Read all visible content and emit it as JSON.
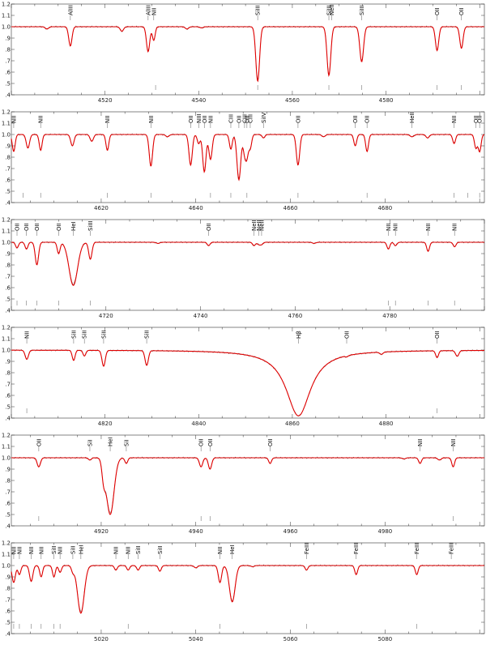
{
  "colors": {
    "model": "#e00000",
    "observed": "#555555",
    "frame": "#333333"
  },
  "chart_data": [
    {
      "type": "line",
      "xlim": [
        4500,
        4601
      ],
      "ylim": [
        0.4,
        1.2
      ],
      "xticks": [
        4520,
        4540,
        4560,
        4580
      ],
      "yticks": [
        0.4,
        0.5,
        0.6,
        0.7,
        0.8,
        0.9,
        1.0,
        1.1,
        1.2
      ],
      "ytick_labels": [
        ".4",
        ".5",
        ".6",
        ".7",
        ".8",
        ".9",
        "1.0",
        "1.1",
        "1.2"
      ],
      "series": [
        {
          "role": "observed",
          "x": [
            4500,
            4601
          ],
          "y": [
            1.0,
            1.0
          ]
        },
        {
          "role": "model",
          "x": [
            4500,
            4601
          ],
          "y": [
            1.0,
            1.0
          ]
        }
      ],
      "lines": [
        {
          "label": "AlIII",
          "x": 4512.6,
          "depth": 0.17,
          "width": 0.35
        },
        {
          "label": "AlIII",
          "x": 4529.2,
          "depth": 0.22,
          "width": 0.35
        },
        {
          "label": "NII",
          "x": 4530.4,
          "depth": 0.12,
          "width": 0.3
        },
        {
          "label": "SiIII",
          "x": 4552.6,
          "depth": 0.48,
          "width": 0.4
        },
        {
          "label": "SiIII",
          "x": 4567.8,
          "depth": 0.43,
          "width": 0.4
        },
        {
          "label": "NeII",
          "x": 4568.4,
          "depth": 0.0,
          "width": 0.3
        },
        {
          "label": "SiIII",
          "x": 4574.8,
          "depth": 0.31,
          "width": 0.4
        },
        {
          "label": "OII",
          "x": 4590.9,
          "depth": 0.21,
          "width": 0.35
        },
        {
          "label": "OII",
          "x": 4596.1,
          "depth": 0.19,
          "width": 0.35
        }
      ],
      "extra_dips": [
        [
          4507.6,
          0.02
        ],
        [
          4523.6,
          0.04
        ],
        [
          4537.5,
          0.02
        ],
        [
          4540.6,
          0.01
        ]
      ],
      "markers": [
        4530.8,
        4552.6,
        4567.8,
        4574.8,
        4590.9,
        4596.1
      ]
    },
    {
      "type": "line",
      "xlim": [
        4601,
        4701
      ],
      "ylim": [
        0.4,
        1.2
      ],
      "xticks": [
        4620,
        4640,
        4660,
        4680
      ],
      "yticks": [
        0.4,
        0.5,
        0.6,
        0.7,
        0.8,
        0.9,
        1.0,
        1.1,
        1.2
      ],
      "ytick_labels": [
        ".4",
        ".5",
        ".6",
        ".7",
        ".8",
        ".9",
        "1.0",
        "1.1",
        "1.2"
      ],
      "series": [
        {
          "role": "observed",
          "x": [
            4601,
            4701
          ],
          "y": [
            1.0,
            1.0
          ]
        },
        {
          "role": "model",
          "x": [
            4601,
            4701
          ],
          "y": [
            1.0,
            1.0
          ]
        }
      ],
      "lines": [
        {
          "label": "NII",
          "x": 4601.5,
          "depth": 0.15,
          "width": 0.3
        },
        {
          "label": "NII",
          "x": 4607.2,
          "depth": 0.14,
          "width": 0.3
        },
        {
          "label": "NII",
          "x": 4621.3,
          "depth": 0.14,
          "width": 0.3
        },
        {
          "label": "NII",
          "x": 4630.5,
          "depth": 0.28,
          "width": 0.35
        },
        {
          "label": "OII",
          "x": 4638.9,
          "depth": 0.27,
          "width": 0.35
        },
        {
          "label": "NIII",
          "x": 4640.6,
          "depth": 0.08,
          "width": 0.3
        },
        {
          "label": "OII",
          "x": 4641.8,
          "depth": 0.33,
          "width": 0.35
        },
        {
          "label": "NII",
          "x": 4643.1,
          "depth": 0.22,
          "width": 0.35
        },
        {
          "label": "CIII",
          "x": 4647.4,
          "depth": 0.13,
          "width": 0.3
        },
        {
          "label": "OII",
          "x": 4649.1,
          "depth": 0.4,
          "width": 0.4
        },
        {
          "label": "CIII",
          "x": 4650.3,
          "depth": 0.15,
          "width": 0.3
        },
        {
          "label": "OII",
          "x": 4650.8,
          "depth": 0.18,
          "width": 0.3
        },
        {
          "label": "CIII",
          "x": 4651.5,
          "depth": 0.12,
          "width": 0.3
        },
        {
          "label": "SiIV",
          "x": 4654.3,
          "depth": 0.03,
          "width": 0.3
        },
        {
          "label": "OII",
          "x": 4661.6,
          "depth": 0.27,
          "width": 0.35
        },
        {
          "label": "OII",
          "x": 4673.7,
          "depth": 0.1,
          "width": 0.3
        },
        {
          "label": "OII",
          "x": 4676.2,
          "depth": 0.15,
          "width": 0.3
        },
        {
          "label": "HeII",
          "x": 4685.7,
          "depth": 0.02,
          "width": 0.4
        },
        {
          "label": "NII",
          "x": 4694.6,
          "depth": 0.08,
          "width": 0.3
        },
        {
          "label": "OII",
          "x": 4699.2,
          "depth": 0.12,
          "width": 0.3
        },
        {
          "label": "OII",
          "x": 4700.0,
          "depth": 0.15,
          "width": 0.3
        }
      ],
      "extra_dips": [
        [
          4604.5,
          0.12
        ],
        [
          4613.9,
          0.1
        ],
        [
          4618.0,
          0.06
        ],
        [
          4634.0,
          0.02
        ],
        [
          4667.0,
          0.02
        ],
        [
          4689.0,
          0.03
        ]
      ],
      "markers": [
        4603.5,
        4607.2,
        4621.3,
        4630.5,
        4643.1,
        4647.4,
        4650.8,
        4661.6,
        4676.2,
        4694.6,
        4697.5,
        4700.0
      ]
    },
    {
      "type": "line",
      "xlim": [
        4700,
        4800
      ],
      "ylim": [
        0.4,
        1.2
      ],
      "xticks": [
        4720,
        4740,
        4760,
        4780
      ],
      "yticks": [
        0.4,
        0.5,
        0.6,
        0.7,
        0.8,
        0.9,
        1.0,
        1.1,
        1.2
      ],
      "ytick_labels": [
        ".4",
        ".5",
        ".6",
        ".7",
        ".8",
        ".9",
        "1.0",
        "1.1",
        "1.2"
      ],
      "series": [
        {
          "role": "observed",
          "x": [
            4700,
            4800
          ],
          "y": [
            1.0,
            1.0
          ]
        },
        {
          "role": "model",
          "x": [
            4700,
            4800
          ],
          "y": [
            1.0,
            1.0
          ]
        }
      ],
      "lines": [
        {
          "label": "OII",
          "x": 4701.2,
          "depth": 0.05,
          "width": 0.3
        },
        {
          "label": "OII",
          "x": 4703.2,
          "depth": 0.06,
          "width": 0.3
        },
        {
          "label": "OII",
          "x": 4705.4,
          "depth": 0.2,
          "width": 0.35
        },
        {
          "label": "OII",
          "x": 4710.0,
          "depth": 0.1,
          "width": 0.3
        },
        {
          "label": "HeI",
          "x": 4713.1,
          "depth": 0.38,
          "width": 0.9
        },
        {
          "label": "SiIII",
          "x": 4716.7,
          "depth": 0.15,
          "width": 0.35
        },
        {
          "label": "OII",
          "x": 4741.7,
          "depth": 0.03,
          "width": 0.3
        },
        {
          "label": "NeII",
          "x": 4751.3,
          "depth": 0.03,
          "width": 0.3
        },
        {
          "label": "NeII",
          "x": 4752.3,
          "depth": 0.02,
          "width": 0.3
        },
        {
          "label": "NeII",
          "x": 4752.9,
          "depth": 0.02,
          "width": 0.3
        },
        {
          "label": "NII",
          "x": 4779.7,
          "depth": 0.06,
          "width": 0.3
        },
        {
          "label": "NII",
          "x": 4781.2,
          "depth": 0.03,
          "width": 0.3
        },
        {
          "label": "NII",
          "x": 4788.1,
          "depth": 0.08,
          "width": 0.3
        },
        {
          "label": "NII",
          "x": 4793.7,
          "depth": 0.04,
          "width": 0.3
        }
      ],
      "extra_dips": [
        [
          4731.0,
          0.01
        ],
        [
          4764.0,
          0.01
        ]
      ],
      "markers": [
        4701.2,
        4703.2,
        4705.4,
        4710.0,
        4716.7,
        4779.7,
        4781.2,
        4788.1,
        4793.7
      ]
    },
    {
      "type": "line",
      "xlim": [
        4800,
        4901
      ],
      "ylim": [
        0.4,
        1.2
      ],
      "xticks": [
        4820,
        4840,
        4860,
        4880
      ],
      "yticks": [
        0.4,
        0.5,
        0.6,
        0.7,
        0.8,
        0.9,
        1.0,
        1.1,
        1.2
      ],
      "ytick_labels": [
        ".4",
        ".5",
        ".6",
        ".7",
        ".8",
        ".9",
        "1.0",
        "1.1",
        "1.2"
      ],
      "series": [
        {
          "role": "observed",
          "x": [
            4800,
            4901
          ],
          "y": [
            1.0,
            1.0
          ]
        },
        {
          "role": "model",
          "x": [
            4800,
            4901
          ],
          "y": [
            1.0,
            1.0
          ]
        }
      ],
      "lines": [
        {
          "label": "NII",
          "x": 4803.3,
          "depth": 0.08,
          "width": 0.35
        },
        {
          "label": "SiII",
          "x": 4813.3,
          "depth": 0.09,
          "width": 0.3
        },
        {
          "label": "SiII",
          "x": 4815.6,
          "depth": 0.05,
          "width": 0.3
        },
        {
          "label": "SiII",
          "x": 4819.7,
          "depth": 0.14,
          "width": 0.35
        },
        {
          "label": "SiII",
          "x": 4828.9,
          "depth": 0.13,
          "width": 0.35
        },
        {
          "label": "Hβ",
          "x": 4861.3,
          "depth": 0.0,
          "width": 0.3
        },
        {
          "label": "OII",
          "x": 4871.6,
          "depth": 0.01,
          "width": 0.3
        },
        {
          "label": "OII",
          "x": 4890.9,
          "depth": 0.06,
          "width": 0.3
        }
      ],
      "balmer": {
        "x": 4861.3,
        "depth": 0.58,
        "hwhm": 3.2
      },
      "extra_dips": [
        [
          4895.2,
          0.05
        ],
        [
          4879.0,
          0.02
        ]
      ],
      "markers": [
        4803.3,
        4890.9
      ]
    },
    {
      "type": "line",
      "xlim": [
        4901,
        5001
      ],
      "ylim": [
        0.4,
        1.2
      ],
      "xticks": [
        4920,
        4940,
        4960,
        4980
      ],
      "yticks": [
        0.4,
        0.5,
        0.6,
        0.7,
        0.8,
        0.9,
        1.0,
        1.1,
        1.2
      ],
      "ytick_labels": [
        ".4",
        ".5",
        ".6",
        ".7",
        ".8",
        ".9",
        "1.0",
        "1.1",
        "1.2"
      ],
      "series": [
        {
          "role": "observed",
          "x": [
            4901,
            5001
          ],
          "y": [
            1.0,
            1.0
          ]
        },
        {
          "role": "model",
          "x": [
            4901,
            5001
          ],
          "y": [
            1.0,
            1.0
          ]
        }
      ],
      "lines": [
        {
          "label": "OII",
          "x": 4906.8,
          "depth": 0.08,
          "width": 0.35
        },
        {
          "label": "SiI",
          "x": 4917.6,
          "depth": 0.02,
          "width": 0.3
        },
        {
          "label": "HeI",
          "x": 4921.9,
          "depth": 0.5,
          "width": 0.8
        },
        {
          "label": "SiI",
          "x": 4925.3,
          "depth": 0.05,
          "width": 0.3
        },
        {
          "label": "OII",
          "x": 4941.1,
          "depth": 0.08,
          "width": 0.35
        },
        {
          "label": "OII",
          "x": 4943.0,
          "depth": 0.1,
          "width": 0.35
        },
        {
          "label": "OII",
          "x": 4955.7,
          "depth": 0.05,
          "width": 0.3
        },
        {
          "label": "NII",
          "x": 4987.4,
          "depth": 0.05,
          "width": 0.3
        },
        {
          "label": "NII",
          "x": 4994.4,
          "depth": 0.08,
          "width": 0.3
        }
      ],
      "extra_dips": [
        [
          4920.5,
          0.15
        ],
        [
          4984.0,
          0.01
        ],
        [
          4991.5,
          0.02
        ]
      ],
      "markers": [
        4906.8,
        4941.1,
        4943.0,
        4994.4
      ]
    },
    {
      "type": "line",
      "xlim": [
        5001,
        5101
      ],
      "ylim": [
        0.4,
        1.2
      ],
      "xticks": [
        5020,
        5040,
        5060,
        5080
      ],
      "yticks": [
        0.4,
        0.5,
        0.6,
        0.7,
        0.8,
        0.9,
        1.0,
        1.1,
        1.2
      ],
      "ytick_labels": [
        ".4",
        ".5",
        ".6",
        ".7",
        ".8",
        ".9",
        "1.0",
        "1.1",
        "1.2"
      ],
      "series": [
        {
          "role": "observed",
          "x": [
            5001,
            5101
          ],
          "y": [
            1.0,
            1.0
          ]
        },
        {
          "role": "model",
          "x": [
            5001,
            5101
          ],
          "y": [
            1.0,
            1.0
          ]
        }
      ],
      "lines": [
        {
          "label": "NII",
          "x": 5001.5,
          "depth": 0.15,
          "width": 0.35
        },
        {
          "label": "NII",
          "x": 5002.7,
          "depth": 0.08,
          "width": 0.3
        },
        {
          "label": "NII",
          "x": 5005.2,
          "depth": 0.14,
          "width": 0.35
        },
        {
          "label": "NII",
          "x": 5007.3,
          "depth": 0.1,
          "width": 0.3
        },
        {
          "label": "SiII",
          "x": 5010.0,
          "depth": 0.1,
          "width": 0.3
        },
        {
          "label": "NII",
          "x": 5011.3,
          "depth": 0.06,
          "width": 0.3
        },
        {
          "label": "SiII",
          "x": 5014.0,
          "depth": 0.05,
          "width": 0.3
        },
        {
          "label": "HeI",
          "x": 5015.7,
          "depth": 0.42,
          "width": 0.7
        },
        {
          "label": "NII",
          "x": 5023.1,
          "depth": 0.04,
          "width": 0.3
        },
        {
          "label": "NII",
          "x": 5025.7,
          "depth": 0.04,
          "width": 0.3
        },
        {
          "label": "SiII",
          "x": 5027.8,
          "depth": 0.04,
          "width": 0.3
        },
        {
          "label": "SiII",
          "x": 5032.4,
          "depth": 0.05,
          "width": 0.3
        },
        {
          "label": "NII",
          "x": 5045.1,
          "depth": 0.15,
          "width": 0.35
        },
        {
          "label": "HeI",
          "x": 5047.7,
          "depth": 0.32,
          "width": 0.6
        },
        {
          "label": "FeIII",
          "x": 5063.4,
          "depth": 0.04,
          "width": 0.3
        },
        {
          "label": "FeIII",
          "x": 5073.9,
          "depth": 0.08,
          "width": 0.3
        },
        {
          "label": "FeIII",
          "x": 5086.7,
          "depth": 0.08,
          "width": 0.3
        },
        {
          "label": "FeIII",
          "x": 5094.0,
          "depth": 0.0,
          "width": 0.3
        }
      ],
      "extra_dips": [
        [
          5040.0,
          0.02
        ],
        [
          5052.0,
          0.01
        ]
      ],
      "markers": [
        5001.5,
        5002.7,
        5005.2,
        5007.3,
        5010.0,
        5011.3,
        5025.7,
        5045.1,
        5063.4,
        5086.7
      ]
    }
  ]
}
